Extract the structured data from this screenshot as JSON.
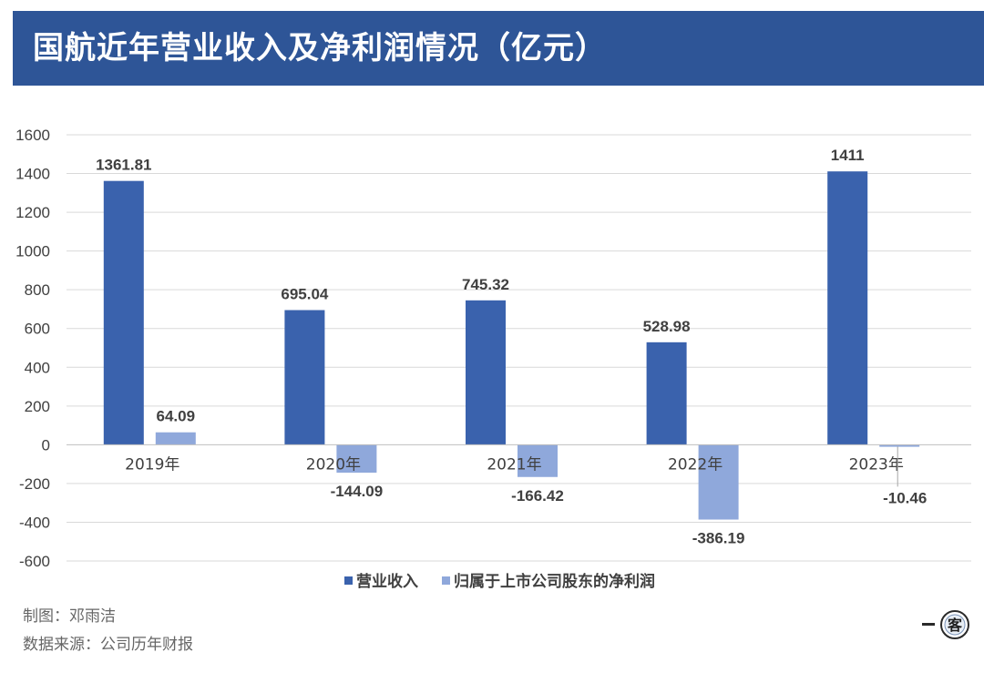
{
  "header": {
    "title": "国航近年营业收入及净利润情况（亿元）"
  },
  "chart_data": {
    "type": "bar",
    "categories": [
      "2019年",
      "2020年",
      "2021年",
      "2022年",
      "2023年"
    ],
    "series": [
      {
        "name": "营业收入",
        "color": "#3a62ad",
        "values": [
          1361.81,
          695.04,
          745.32,
          528.98,
          1411
        ]
      },
      {
        "name": "归属于上市公司股东的净利润",
        "color": "#8fa8db",
        "values": [
          64.09,
          -144.09,
          -166.42,
          -386.19,
          -10.46
        ]
      }
    ],
    "data_labels": [
      [
        "1361.81",
        "695.04",
        "745.32",
        "528.98",
        "1411"
      ],
      [
        "64.09",
        "-144.09",
        "-166.42",
        "-386.19",
        "-10.46"
      ]
    ],
    "yticks": [
      1600,
      1400,
      1200,
      1000,
      800,
      600,
      400,
      200,
      0,
      -200,
      -400,
      -600
    ],
    "ylim": [
      -600,
      1600
    ],
    "grid": true,
    "legend_position": "bottom",
    "title": "",
    "xlabel": "",
    "ylabel": ""
  },
  "credits": {
    "author": "制图：邓雨洁",
    "source": "数据来源：公司历年财报"
  },
  "logo": {
    "icon": "yike-logo",
    "char": "客"
  }
}
